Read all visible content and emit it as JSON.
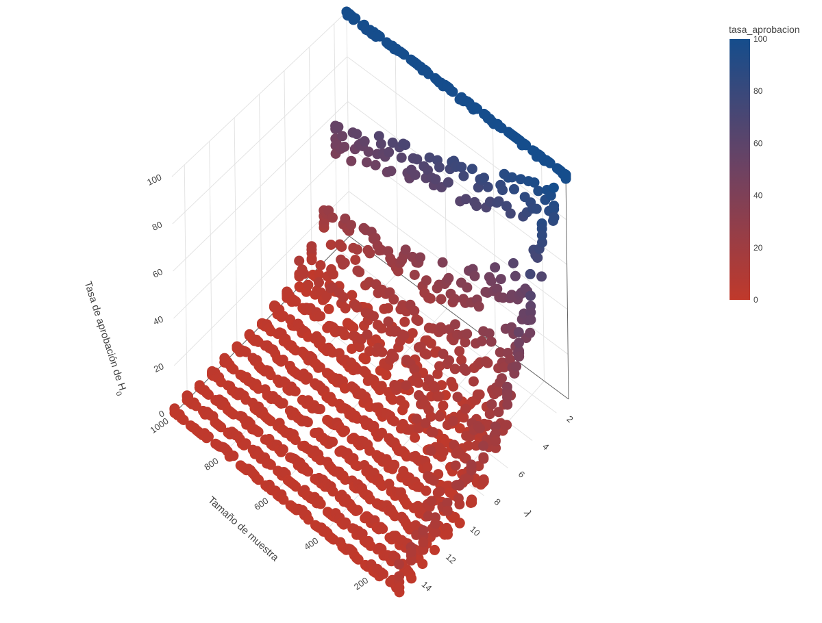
{
  "chart_data": {
    "type": "scatter3d",
    "title": "",
    "x_axis": {
      "label": "λ",
      "range": [
        1,
        15
      ],
      "ticks": [
        "2",
        "4",
        "6",
        "8",
        "10",
        "12",
        "14"
      ]
    },
    "y_axis": {
      "label": "Tamaño de muestra",
      "range": [
        100,
        1000
      ],
      "ticks": [
        "200",
        "400",
        "600",
        "800",
        "1000"
      ]
    },
    "z_axis": {
      "label": "Tasa de aprobación de H",
      "label_subscript": "0",
      "range": [
        0,
        100
      ],
      "ticks": [
        "0",
        "20",
        "40",
        "60",
        "80",
        "100"
      ]
    },
    "colorbar": {
      "title": "tasa_aprobacion",
      "ticks": [
        "0",
        "20",
        "40",
        "60",
        "80",
        "100"
      ],
      "range": [
        0,
        100
      ],
      "colors": [
        "#c0392b",
        "#6e4262",
        "#154d8c"
      ]
    },
    "lambda_values": [
      1,
      2,
      3,
      4,
      5,
      6,
      7,
      8,
      9,
      10,
      11,
      12,
      13,
      14,
      15
    ],
    "sample_sizes": [
      100,
      200,
      300,
      400,
      500,
      600,
      700,
      800,
      900,
      1000
    ],
    "series_description_values": {
      "approval_at_low_lambda_pct": 100,
      "approval_at_high_lambda_small_n_pct": 0
    },
    "grid": true,
    "legend": "colorbar-right"
  }
}
